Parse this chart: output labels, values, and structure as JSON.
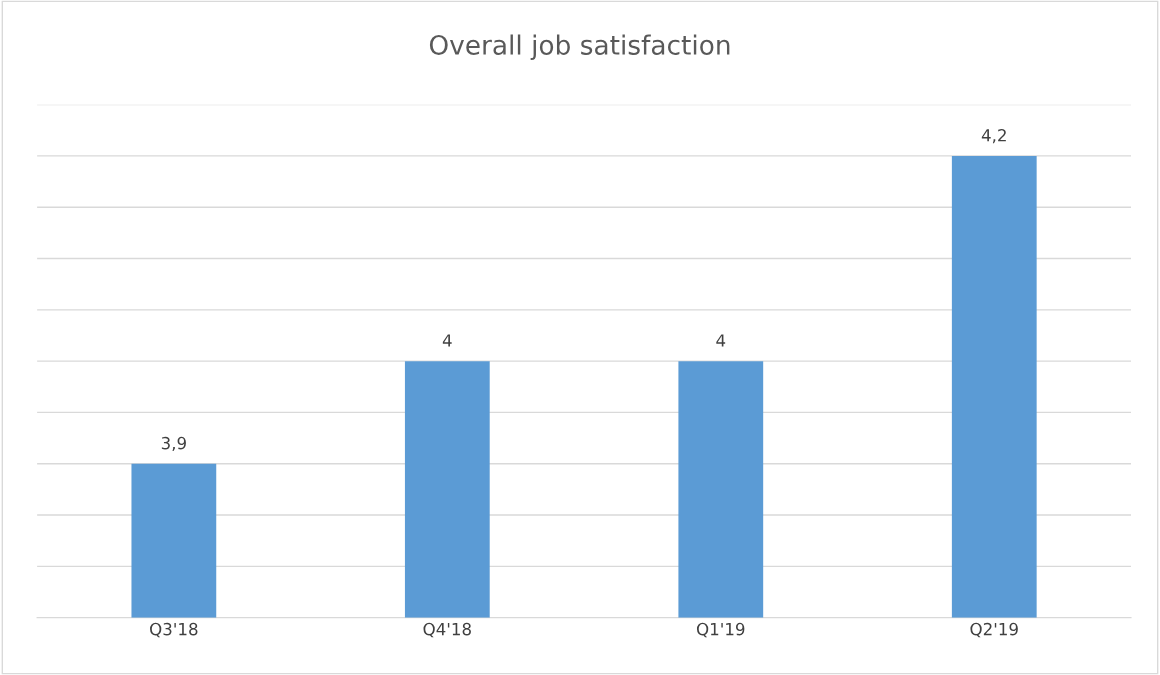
{
  "chart_data": {
    "type": "bar",
    "title": "Overall job satisfaction",
    "categories": [
      "Q3'18",
      "Q4'18",
      "Q1'19",
      "Q2'19"
    ],
    "values": [
      3.9,
      4,
      4,
      4.2
    ],
    "value_labels": [
      "3,9",
      "4",
      "4",
      "4,2"
    ],
    "color": "#5b9bd5",
    "ylim": [
      3.75,
      4.25
    ],
    "yticks": [
      {
        "value": 3.75,
        "label": null
      },
      {
        "value": 3.8,
        "label": null
      },
      {
        "value": 3.85,
        "label": null
      },
      {
        "value": 3.9,
        "label": null
      },
      {
        "value": 3.95,
        "label": null
      },
      {
        "value": 4.0,
        "label": null
      },
      {
        "value": 4.05,
        "label": null
      },
      {
        "value": 4.1,
        "label": null
      },
      {
        "value": 4.15,
        "label": null
      },
      {
        "value": 4.2,
        "label": null
      },
      {
        "value": 4.25,
        "label": null
      }
    ],
    "grid": "y",
    "tick_labels": "x"
  }
}
